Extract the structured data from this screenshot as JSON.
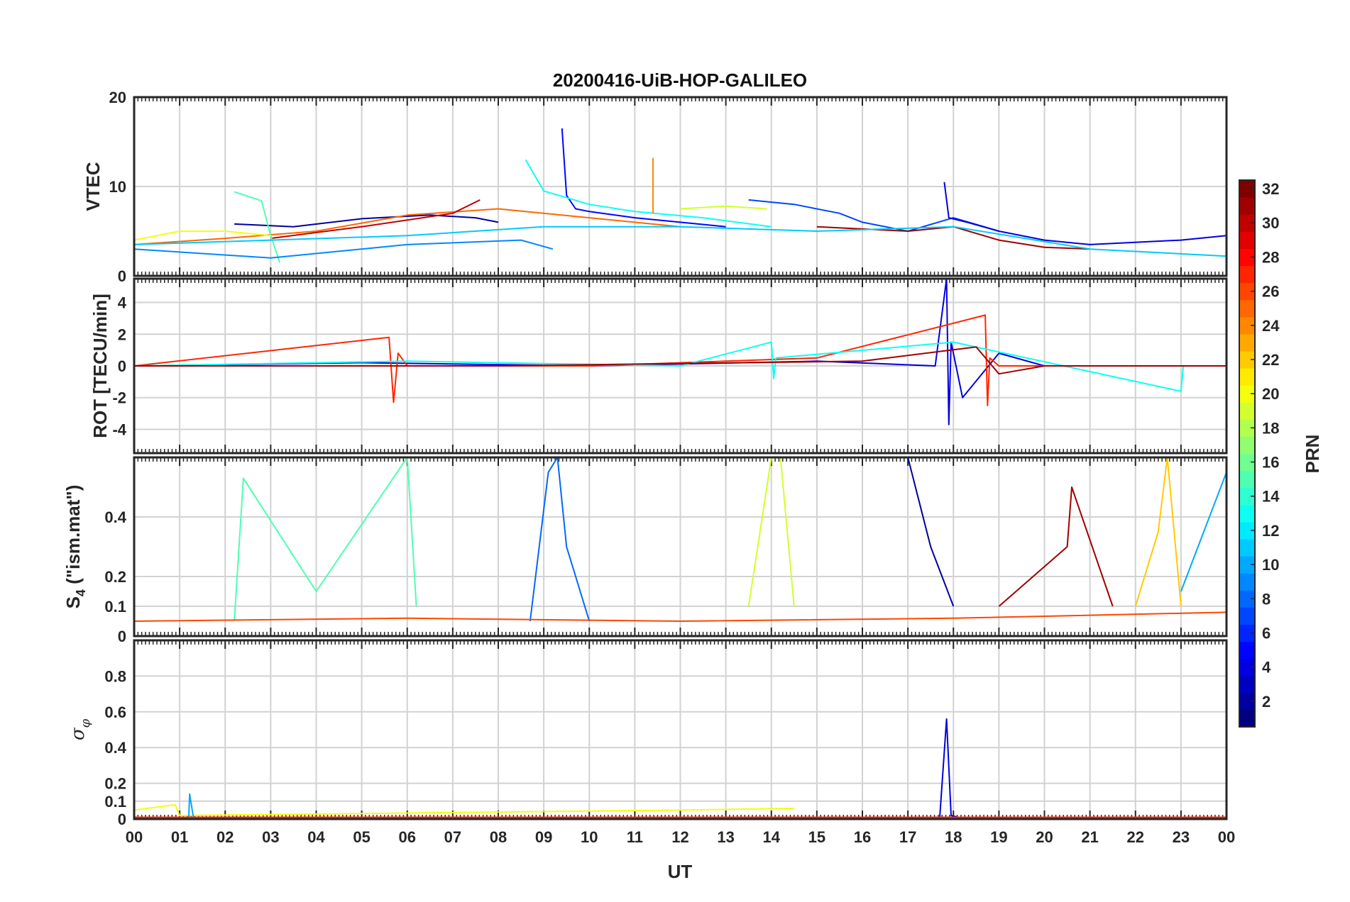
{
  "chart_data": {
    "type": "line",
    "title": "20200416-UiB-HOP-GALILEO",
    "xlabel": "UT",
    "x_ticks": [
      "00",
      "01",
      "02",
      "03",
      "04",
      "05",
      "06",
      "07",
      "08",
      "09",
      "10",
      "11",
      "12",
      "13",
      "14",
      "15",
      "16",
      "17",
      "18",
      "19",
      "20",
      "21",
      "22",
      "23",
      "00"
    ],
    "xlim_hours": [
      0,
      24
    ],
    "grid": true,
    "panels": [
      {
        "id": "vtec",
        "ylabel": "VTEC",
        "ylim": [
          0,
          20
        ],
        "yticks": [
          0,
          10,
          20
        ],
        "series": [
          {
            "prn": 2,
            "x": [
              2.2,
              3.5,
              5,
              6.5,
              7.5,
              8
            ],
            "y": [
              5.8,
              5.5,
              6.4,
              6.8,
              6.5,
              6
            ]
          },
          {
            "prn": 5,
            "x": [
              9.4,
              9.5,
              9.7,
              10,
              11,
              12,
              13
            ],
            "y": [
              16.5,
              9,
              7.5,
              7.2,
              6.5,
              6,
              5.5
            ]
          },
          {
            "prn": 13,
            "x": [
              8.6,
              9,
              10,
              11,
              12.5,
              14
            ],
            "y": [
              13,
              9.5,
              8,
              7.2,
              6.5,
              5.5
            ]
          },
          {
            "prn": 25,
            "x": [
              0,
              2,
              4,
              6,
              8,
              10,
              12
            ],
            "y": [
              3.5,
              4.2,
              5,
              6.8,
              7.5,
              6.5,
              5.5
            ]
          },
          {
            "prn": 30,
            "x": [
              3,
              5,
              7,
              7.6
            ],
            "y": [
              4.2,
              5.5,
              7,
              8.5
            ]
          },
          {
            "prn": 24,
            "x": [
              11.4,
              11.4
            ],
            "y": [
              7,
              13.2
            ]
          },
          {
            "prn": 7,
            "x": [
              13.5,
              14.5,
              15.5,
              16,
              17,
              18,
              19
            ],
            "y": [
              8.5,
              8,
              7,
              6,
              5,
              6.5,
              5
            ]
          },
          {
            "prn": 19,
            "x": [
              12,
              13,
              13.9
            ],
            "y": [
              7.5,
              7.8,
              7.5
            ]
          },
          {
            "prn": 15,
            "x": [
              2.2,
              2.8,
              3.0,
              3.2
            ],
            "y": [
              9.4,
              8.4,
              4.5,
              1.5
            ]
          },
          {
            "prn": 4,
            "x": [
              17.8,
              17.9,
              18.3,
              19,
              20,
              21,
              23,
              24
            ],
            "y": [
              10.5,
              6.5,
              6,
              5,
              4,
              3.5,
              4,
              4.5
            ]
          },
          {
            "prn": 31,
            "x": [
              15,
              17,
              18,
              19,
              20,
              21
            ],
            "y": [
              5.5,
              5,
              5.5,
              4,
              3.2,
              3
            ]
          },
          {
            "prn": 11,
            "x": [
              0,
              3,
              6,
              9,
              12,
              15,
              18,
              21,
              24
            ],
            "y": [
              3.5,
              4,
              4.5,
              5.5,
              5.5,
              5,
              5.5,
              3,
              2.2
            ]
          },
          {
            "prn": 20,
            "x": [
              0,
              1,
              2,
              3
            ],
            "y": [
              4,
              5,
              5,
              4.5
            ]
          },
          {
            "prn": 9,
            "x": [
              0,
              3,
              6,
              8.5,
              9.2
            ],
            "y": [
              3,
              2,
              3.5,
              4,
              3
            ]
          }
        ]
      },
      {
        "id": "rot",
        "ylabel": "ROT [TECU/min]",
        "ylim": [
          -5.5,
          5.5
        ],
        "yticks": [
          -4,
          -2,
          0,
          2,
          4
        ],
        "series": [
          {
            "prn": 4,
            "x": [
              0,
              5,
              10,
              15,
              17.6,
              17.85,
              17.9,
              17.95,
              18.2,
              19,
              20,
              24
            ],
            "y": [
              0,
              0.2,
              0,
              0.3,
              0,
              5.5,
              -3.7,
              1.5,
              -2,
              0.8,
              0,
              0
            ]
          },
          {
            "prn": 27,
            "x": [
              0,
              5.6,
              5.7,
              5.8,
              6,
              10,
              15,
              18.7,
              18.75,
              18.8,
              19,
              24
            ],
            "y": [
              0,
              1.8,
              -2.3,
              0.8,
              0,
              0,
              0.5,
              3.2,
              -2.5,
              0.5,
              0,
              0
            ]
          },
          {
            "prn": 13,
            "x": [
              0,
              6,
              12,
              14,
              14.05,
              14.1,
              18,
              23,
              23.05,
              24
            ],
            "y": [
              0,
              0.3,
              0,
              1.5,
              -0.8,
              0.5,
              1.5,
              -1.6,
              0,
              0
            ]
          },
          {
            "prn": 31,
            "x": [
              0,
              8,
              16,
              18.5,
              19,
              20,
              24
            ],
            "y": [
              0,
              0,
              0.3,
              1.2,
              -0.5,
              0,
              0
            ]
          }
        ]
      },
      {
        "id": "s4",
        "ylabel": "S₄ (\"ism.mat\")",
        "ylim": [
          0,
          0.6
        ],
        "yticks": [
          0,
          0.1,
          0.2,
          0.4
        ],
        "series": [
          {
            "prn": 2,
            "x": [
              17,
              17.5,
              18
            ],
            "y": [
              0.6,
              0.3,
              0.1
            ]
          },
          {
            "prn": 15,
            "x": [
              2.2,
              2.4,
              4,
              6,
              6.2
            ],
            "y": [
              0.05,
              0.53,
              0.15,
              0.6,
              0.1
            ]
          },
          {
            "prn": 8,
            "x": [
              8.7,
              9.1,
              9.3,
              9.5,
              10
            ],
            "y": [
              0.05,
              0.55,
              0.6,
              0.3,
              0.05
            ]
          },
          {
            "prn": 19,
            "x": [
              13.5,
              14,
              14.2,
              14.5
            ],
            "y": [
              0.1,
              0.6,
              0.6,
              0.1
            ]
          },
          {
            "prn": 22,
            "x": [
              22,
              22.5,
              22.7,
              23
            ],
            "y": [
              0.1,
              0.35,
              0.6,
              0.1
            ]
          },
          {
            "prn": 31,
            "x": [
              19,
              20.5,
              20.6,
              21.5
            ],
            "y": [
              0.1,
              0.3,
              0.5,
              0.1
            ]
          },
          {
            "prn": 10,
            "x": [
              23,
              23.5,
              24
            ],
            "y": [
              0.15,
              0.35,
              0.55
            ]
          },
          {
            "prn": 26,
            "x": [
              0,
              6,
              12,
              18,
              24
            ],
            "y": [
              0.05,
              0.06,
              0.05,
              0.06,
              0.08
            ]
          }
        ]
      },
      {
        "id": "sigphi",
        "ylabel": "σ_φ",
        "ylim": [
          0,
          1
        ],
        "yticks": [
          0,
          0.1,
          0.2,
          0.4,
          0.6,
          0.8
        ],
        "series": [
          {
            "prn": 4,
            "x": [
              0,
              17.7,
              17.85,
              17.95,
              18.1,
              24
            ],
            "y": [
              0.01,
              0.01,
              0.56,
              0.02,
              0.01,
              0.01
            ]
          },
          {
            "prn": 20,
            "x": [
              0,
              0.9,
              1.0,
              12.0,
              14.5
            ],
            "y": [
              0.05,
              0.08,
              0.02,
              0.05,
              0.06
            ]
          },
          {
            "prn": 10,
            "x": [
              1.2,
              1.22,
              1.3
            ],
            "y": [
              0.01,
              0.14,
              0.01
            ]
          },
          {
            "prn": 27,
            "x": [
              0,
              24
            ],
            "y": [
              0.01,
              0.01
            ]
          }
        ]
      }
    ],
    "colorbar": {
      "label": "PRN",
      "range": [
        1,
        32
      ],
      "ticks": [
        2,
        4,
        6,
        8,
        10,
        12,
        14,
        16,
        18,
        20,
        22,
        24,
        26,
        28,
        30,
        32
      ],
      "colormap": "jet"
    }
  }
}
